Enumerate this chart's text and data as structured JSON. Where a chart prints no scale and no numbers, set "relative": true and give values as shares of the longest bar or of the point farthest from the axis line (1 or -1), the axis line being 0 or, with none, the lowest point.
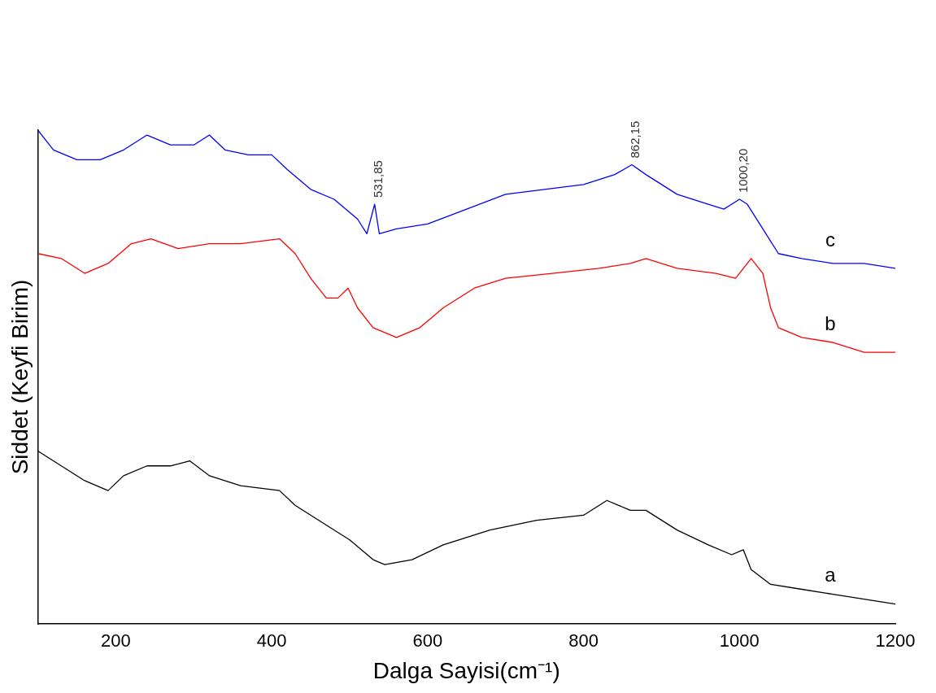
{
  "chart_data": {
    "type": "line",
    "relative": true,
    "xlabel": "Dalga Sayisi(cm⁻¹)",
    "ylabel": "Siddet (Keyfi Birim)",
    "xlim": [
      100,
      1200
    ],
    "xticks": [
      200,
      400,
      600,
      800,
      1000,
      1200
    ],
    "grid": false,
    "legend": false,
    "marker": "none",
    "line_style": "solid",
    "series": [
      {
        "name": "a",
        "color": "#000000",
        "x": [
          100,
          130,
          160,
          190,
          210,
          240,
          270,
          295,
          320,
          360,
          410,
          430,
          460,
          500,
          530,
          545,
          580,
          620,
          680,
          740,
          800,
          830,
          860,
          880,
          920,
          960,
          990,
          1005,
          1015,
          1040,
          1080,
          1120,
          1160,
          1200
        ],
        "values": [
          0.35,
          0.32,
          0.29,
          0.27,
          0.3,
          0.32,
          0.32,
          0.33,
          0.3,
          0.28,
          0.27,
          0.24,
          0.21,
          0.17,
          0.13,
          0.12,
          0.13,
          0.16,
          0.19,
          0.21,
          0.22,
          0.25,
          0.23,
          0.23,
          0.19,
          0.16,
          0.14,
          0.15,
          0.11,
          0.08,
          0.07,
          0.06,
          0.05,
          0.04
        ]
      },
      {
        "name": "b",
        "color": "#ff0000",
        "x": [
          100,
          130,
          160,
          190,
          220,
          245,
          280,
          320,
          360,
          410,
          430,
          450,
          470,
          485,
          498,
          510,
          530,
          560,
          590,
          620,
          660,
          700,
          760,
          820,
          860,
          880,
          920,
          970,
          995,
          1015,
          1030,
          1040,
          1050,
          1080,
          1120,
          1160,
          1200
        ],
        "values": [
          0.75,
          0.74,
          0.71,
          0.73,
          0.77,
          0.78,
          0.76,
          0.77,
          0.77,
          0.78,
          0.75,
          0.7,
          0.66,
          0.66,
          0.68,
          0.64,
          0.6,
          0.58,
          0.6,
          0.64,
          0.68,
          0.7,
          0.71,
          0.72,
          0.73,
          0.74,
          0.72,
          0.71,
          0.7,
          0.74,
          0.71,
          0.64,
          0.6,
          0.58,
          0.57,
          0.55,
          0.55
        ]
      },
      {
        "name": "c",
        "color": "#0000ff",
        "x": [
          100,
          120,
          150,
          180,
          210,
          240,
          270,
          300,
          320,
          340,
          370,
          400,
          420,
          450,
          480,
          510,
          522,
          532,
          538,
          560,
          600,
          650,
          700,
          750,
          800,
          840,
          862,
          880,
          920,
          960,
          980,
          1000,
          1010,
          1030,
          1050,
          1080,
          1120,
          1160,
          1200
        ],
        "values": [
          1.0,
          0.96,
          0.94,
          0.94,
          0.96,
          0.99,
          0.97,
          0.97,
          0.99,
          0.96,
          0.95,
          0.95,
          0.92,
          0.88,
          0.86,
          0.82,
          0.79,
          0.85,
          0.79,
          0.8,
          0.81,
          0.84,
          0.87,
          0.88,
          0.89,
          0.91,
          0.93,
          0.91,
          0.87,
          0.85,
          0.84,
          0.86,
          0.85,
          0.8,
          0.75,
          0.74,
          0.73,
          0.73,
          0.72
        ]
      }
    ],
    "annotations": [
      {
        "text": "531,85",
        "x": 531.85,
        "y": 0.85
      },
      {
        "text": "862,15",
        "x": 862.15,
        "y": 0.93
      },
      {
        "text": "1000,20",
        "x": 1000.2,
        "y": 0.86
      }
    ]
  }
}
